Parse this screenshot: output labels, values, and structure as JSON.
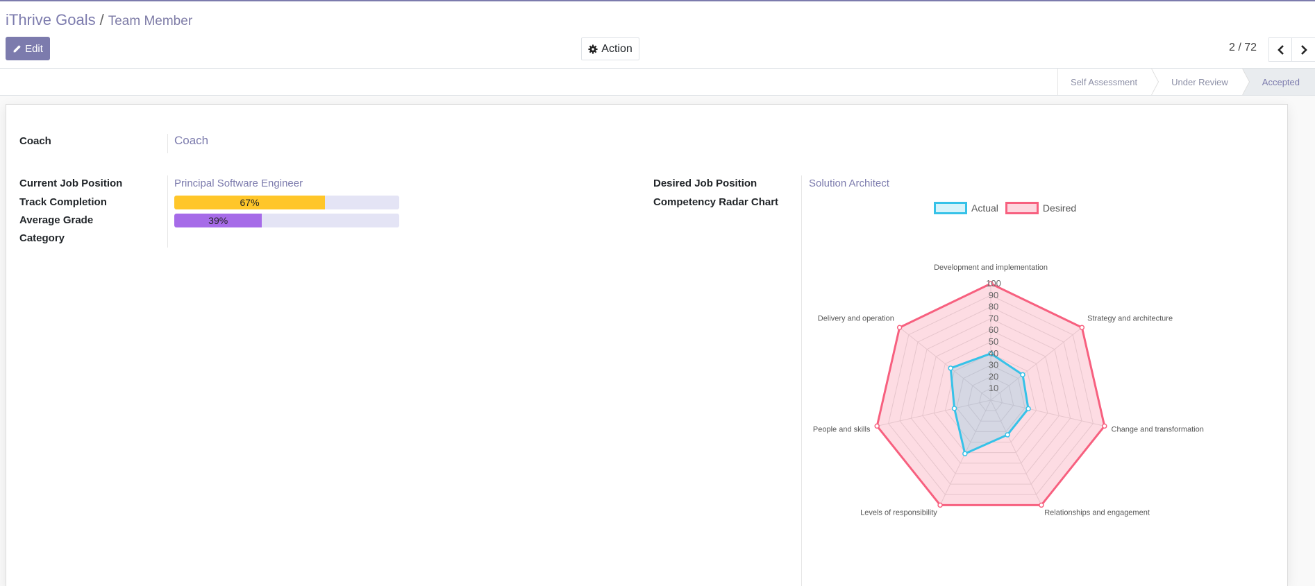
{
  "breadcrumb": {
    "app": "iThrive Goals",
    "separator": "/",
    "current": "Team Member"
  },
  "toolbar": {
    "edit_label": "Edit",
    "action_label": "Action"
  },
  "pager": {
    "value": "2 / 72"
  },
  "stages": [
    {
      "label": "Self Assessment",
      "active": false
    },
    {
      "label": "Under Review",
      "active": false
    },
    {
      "label": "Accepted",
      "active": true
    }
  ],
  "form": {
    "coach_label": "Coach",
    "coach_value": "Coach",
    "current_job_label": "Current Job Position",
    "current_job_value": "Principal Software Engineer",
    "track_completion_label": "Track Completion",
    "track_completion_text": "67%",
    "track_completion_value": 67,
    "average_grade_label": "Average Grade",
    "average_grade_text": "39%",
    "average_grade_value": 39,
    "category_label": "Category",
    "desired_job_label": "Desired Job Position",
    "desired_job_value": "Solution Architect",
    "radar_label": "Competency Radar Chart"
  },
  "colors": {
    "accent": "#7c7bad",
    "track_fill": "#ffc629",
    "grade_fill": "#a66be8",
    "actual": "#36c2e8",
    "desired": "#f7607f"
  },
  "chart_data": {
    "type": "radar",
    "legend_position": "top",
    "categories": [
      "Development and implementation",
      "Strategy and architecture",
      "Change and transformation",
      "Relationships and engagement",
      "Levels of responsibility",
      "People and skills",
      "Delivery and operation"
    ],
    "ticks": [
      "10",
      "20",
      "30",
      "40",
      "50",
      "60",
      "70",
      "80",
      "90",
      "100"
    ],
    "range": [
      0,
      100
    ],
    "series": [
      {
        "name": "Actual",
        "values": [
          40,
          35,
          33,
          33,
          51,
          32,
          44
        ]
      },
      {
        "name": "Desired",
        "values": [
          100,
          100,
          100,
          100,
          100,
          100,
          100
        ]
      }
    ]
  }
}
